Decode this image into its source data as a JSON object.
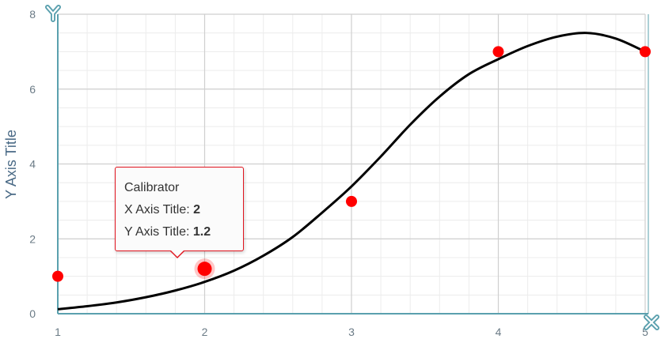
{
  "chart_data": {
    "type": "scatter",
    "xlabel": "",
    "ylabel": "Y Axis Title",
    "xlim": [
      1,
      5
    ],
    "ylim": [
      0,
      8
    ],
    "x_ticks": [
      "1",
      "2",
      "3",
      "4",
      "5"
    ],
    "y_ticks": [
      "0",
      "2",
      "4",
      "6",
      "8"
    ],
    "grid": true,
    "points": [
      {
        "x": 1,
        "y": 1
      },
      {
        "x": 2,
        "y": 1.2
      },
      {
        "x": 3,
        "y": 3
      },
      {
        "x": 4,
        "y": 7
      },
      {
        "x": 5,
        "y": 7
      }
    ],
    "fit_curve": [
      {
        "x": 1.0,
        "y": 0.12
      },
      {
        "x": 1.2,
        "y": 0.2
      },
      {
        "x": 1.4,
        "y": 0.3
      },
      {
        "x": 1.6,
        "y": 0.44
      },
      {
        "x": 1.8,
        "y": 0.62
      },
      {
        "x": 2.0,
        "y": 0.85
      },
      {
        "x": 2.2,
        "y": 1.15
      },
      {
        "x": 2.4,
        "y": 1.55
      },
      {
        "x": 2.6,
        "y": 2.05
      },
      {
        "x": 2.8,
        "y": 2.7
      },
      {
        "x": 3.0,
        "y": 3.4
      },
      {
        "x": 3.2,
        "y": 4.2
      },
      {
        "x": 3.4,
        "y": 5.05
      },
      {
        "x": 3.6,
        "y": 5.8
      },
      {
        "x": 3.8,
        "y": 6.4
      },
      {
        "x": 4.0,
        "y": 6.8
      },
      {
        "x": 4.2,
        "y": 7.15
      },
      {
        "x": 4.4,
        "y": 7.4
      },
      {
        "x": 4.6,
        "y": 7.5
      },
      {
        "x": 4.8,
        "y": 7.35
      },
      {
        "x": 5.0,
        "y": 7.0
      }
    ],
    "colors": {
      "points": "#ff0000",
      "curve": "#000000",
      "axis": "#5aa0ae",
      "grid_major": "#cfcfcf",
      "grid_minor": "#ececec"
    },
    "highlight_index": 1,
    "tooltip": {
      "title": "Calibrator",
      "x_label": "X Axis Title:",
      "x_value": "2",
      "y_label": "Y Axis Title:",
      "y_value": "1.2"
    },
    "icons": {
      "x_axis_badge": "x-axis-icon",
      "y_axis_badge": "y-axis-icon"
    }
  }
}
